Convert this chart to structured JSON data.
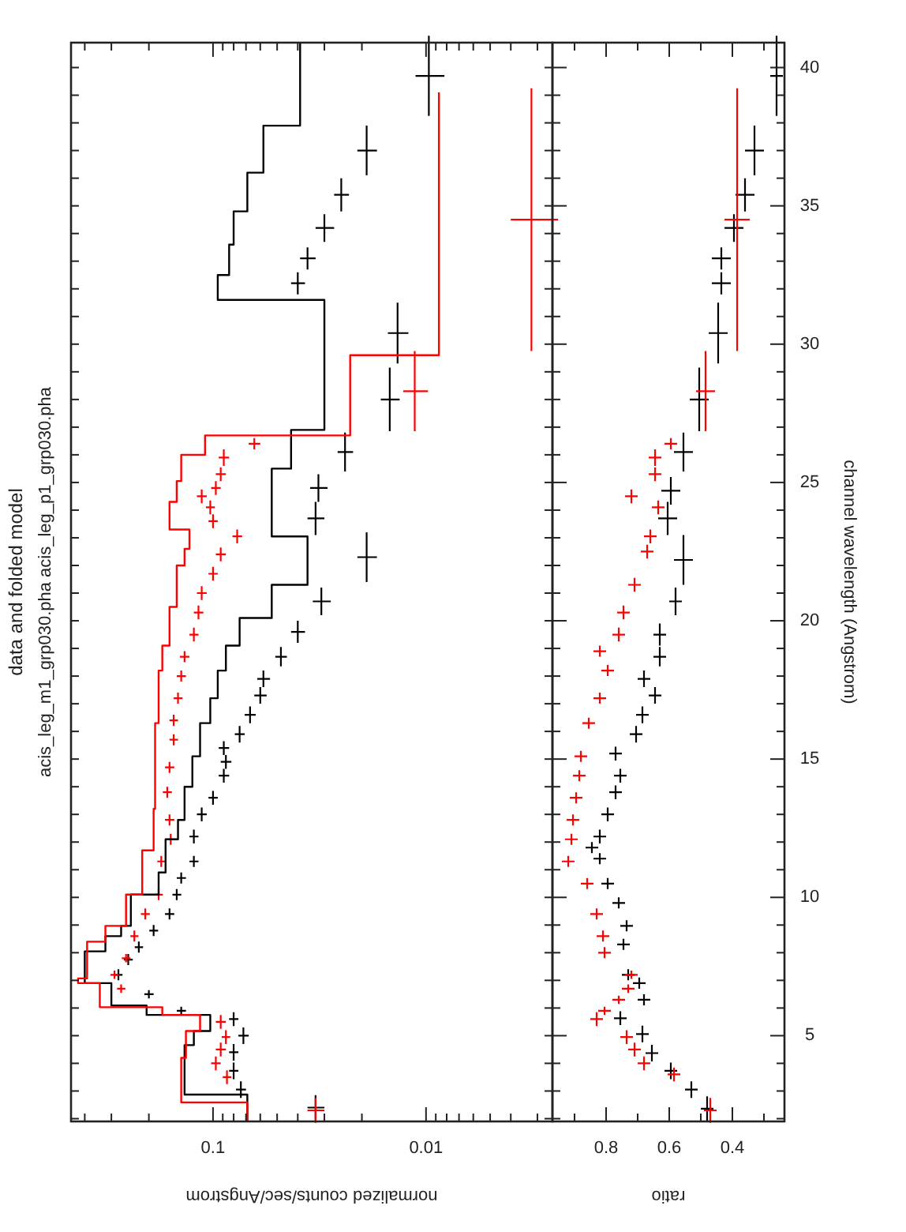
{
  "chart_data": [
    {
      "type": "scatter",
      "title": "data and folded model",
      "subtitle": "acis_leg_m1_grp030.pha acis_leg_p1_grp030.pha",
      "xlabel": "normalized counts/sec/Angstrom",
      "log": "x",
      "tick_labels": "x",
      "xlim": [
        0.464,
        0.00255
      ],
      "ylim": [
        1.9,
        40.9
      ],
      "xticks": [
        {
          "value": 0.003,
          "label": null
        },
        {
          "value": 0.004,
          "label": null
        },
        {
          "value": 0.005,
          "label": null
        },
        {
          "value": 0.006,
          "label": null
        },
        {
          "value": 0.007,
          "label": null
        },
        {
          "value": 0.008,
          "label": null
        },
        {
          "value": 0.009,
          "label": null
        },
        0.01,
        {
          "value": 0.02,
          "label": null
        },
        {
          "value": 0.03,
          "label": null
        },
        {
          "value": 0.04,
          "label": null
        },
        {
          "value": 0.05,
          "label": null
        },
        {
          "value": 0.06,
          "label": null
        },
        {
          "value": 0.07,
          "label": null
        },
        {
          "value": 0.08,
          "label": null
        },
        {
          "value": 0.09,
          "label": null
        },
        0.1,
        {
          "value": 0.2,
          "label": null
        },
        {
          "value": 0.3,
          "label": null
        },
        {
          "value": 0.4,
          "label": null
        }
      ],
      "yticks": [
        {
          "value": 2,
          "label": null
        },
        {
          "value": 3,
          "label": null
        },
        {
          "value": 4,
          "label": null
        },
        {
          "value": 5,
          "label": null
        },
        {
          "value": 6,
          "label": null
        },
        {
          "value": 7,
          "label": null
        },
        {
          "value": 8,
          "label": null
        },
        {
          "value": 9,
          "label": null
        },
        {
          "value": 10,
          "label": null
        },
        {
          "value": 11,
          "label": null
        },
        {
          "value": 12,
          "label": null
        },
        {
          "value": 13,
          "label": null
        },
        {
          "value": 14,
          "label": null
        },
        {
          "value": 15,
          "label": null
        },
        {
          "value": 16,
          "label": null
        },
        {
          "value": 17,
          "label": null
        },
        {
          "value": 18,
          "label": null
        },
        {
          "value": 19,
          "label": null
        },
        {
          "value": 20,
          "label": null
        },
        {
          "value": 21,
          "label": null
        },
        {
          "value": 22,
          "label": null
        },
        {
          "value": 23,
          "label": null
        },
        {
          "value": 24,
          "label": null
        },
        {
          "value": 25,
          "label": null
        },
        {
          "value": 26,
          "label": null
        },
        {
          "value": 27,
          "label": null
        },
        {
          "value": 28,
          "label": null
        },
        {
          "value": 29,
          "label": null
        },
        {
          "value": 30,
          "label": null
        },
        {
          "value": 31,
          "label": null
        },
        {
          "value": 32,
          "label": null
        },
        {
          "value": 33,
          "label": null
        },
        {
          "value": 34,
          "label": null
        },
        {
          "value": 35,
          "label": null
        },
        {
          "value": 36,
          "label": null
        },
        {
          "value": 37,
          "label": null
        },
        {
          "value": 38,
          "label": null
        },
        {
          "value": 39,
          "label": null
        },
        {
          "value": 40,
          "label": null
        }
      ],
      "series": [
        {
          "type": "scatter",
          "marker": "cross",
          "color": "#000000",
          "values": [
            2.4,
            3.05,
            3.73,
            4.4,
            5.0,
            5.6,
            5.9,
            6.5,
            7.2,
            7.75,
            8.2,
            8.8,
            9.4,
            10.1,
            10.7,
            11.3,
            12.2,
            13.0,
            13.6,
            14.4,
            14.9,
            15.4,
            15.9,
            16.6,
            17.3,
            17.9,
            18.7,
            19.6,
            20.7,
            22.3,
            23.7,
            24.8,
            26.1,
            28.0,
            30.4,
            32.2,
            33.1,
            34.2,
            35.4,
            37.0,
            39.7
          ],
          "x": [
            0.033,
            0.074,
            0.08,
            0.08,
            0.072,
            0.08,
            0.141,
            0.2,
            0.278,
            0.25,
            0.223,
            0.19,
            0.16,
            0.148,
            0.141,
            0.123,
            0.123,
            0.113,
            0.1,
            0.089,
            0.087,
            0.089,
            0.075,
            0.067,
            0.06,
            0.058,
            0.048,
            0.04,
            0.031,
            0.019,
            0.033,
            0.032,
            0.024,
            0.0148,
            0.0136,
            0.04,
            0.036,
            0.03,
            0.025,
            0.019,
            0.0097
          ],
          "errors": [
            0.45,
            0.3,
            0.3,
            0.3,
            0.3,
            0.25,
            0.15,
            0.15,
            0.2,
            0.2,
            0.2,
            0.2,
            0.2,
            0.2,
            0.2,
            0.2,
            0.25,
            0.25,
            0.25,
            0.25,
            0.25,
            0.25,
            0.3,
            0.3,
            0.3,
            0.3,
            0.35,
            0.4,
            0.5,
            0.9,
            0.6,
            0.5,
            0.7,
            1.15,
            1.1,
            0.4,
            0.4,
            0.5,
            0.6,
            0.9,
            1.45
          ],
          "xerrors": [
            0.003,
            0.004,
            0.004,
            0.004,
            0.004,
            0.004,
            0.007,
            0.01,
            0.012,
            0.012,
            0.01,
            0.009,
            0.008,
            0.007,
            0.007,
            0.006,
            0.006,
            0.006,
            0.005,
            0.005,
            0.005,
            0.005,
            0.004,
            0.004,
            0.004,
            0.004,
            0.003,
            0.003,
            0.003,
            0.002,
            0.003,
            0.003,
            0.002,
            0.0015,
            0.0015,
            0.003,
            0.003,
            0.003,
            0.002,
            0.002,
            0.0015
          ]
        },
        {
          "type": "scatter",
          "marker": "cross",
          "color": "#ff0000",
          "values": [
            2.3,
            3.5,
            4.0,
            4.5,
            4.95,
            5.5,
            6.7,
            7.2,
            7.8,
            8.6,
            9.4,
            10.1,
            11.3,
            12.1,
            12.8,
            13.8,
            14.7,
            15.7,
            16.4,
            17.2,
            18.0,
            18.7,
            19.5,
            20.3,
            21.0,
            21.7,
            22.4,
            23.05,
            23.6,
            24.1,
            24.5,
            24.8,
            25.3,
            25.9,
            26.4,
            28.3,
            34.5
          ],
          "x": [
            0.033,
            0.086,
            0.097,
            0.092,
            0.087,
            0.092,
            0.27,
            0.29,
            0.256,
            0.234,
            0.208,
            0.18,
            0.175,
            0.158,
            0.16,
            0.164,
            0.16,
            0.153,
            0.153,
            0.146,
            0.141,
            0.136,
            0.123,
            0.117,
            0.113,
            0.1,
            0.092,
            0.077,
            0.1,
            0.103,
            0.113,
            0.097,
            0.092,
            0.089,
            0.064,
            0.0113,
            0.0032
          ],
          "errors": [
            0.45,
            0.25,
            0.25,
            0.25,
            0.25,
            0.25,
            0.15,
            0.15,
            0.15,
            0.2,
            0.2,
            0.2,
            0.2,
            0.2,
            0.2,
            0.2,
            0.2,
            0.2,
            0.2,
            0.2,
            0.2,
            0.2,
            0.25,
            0.25,
            0.25,
            0.25,
            0.25,
            0.25,
            0.25,
            0.25,
            0.25,
            0.25,
            0.25,
            0.3,
            0.2,
            1.45,
            4.75
          ],
          "xerrors": [
            0.003,
            0.004,
            0.005,
            0.005,
            0.004,
            0.005,
            0.012,
            0.013,
            0.012,
            0.01,
            0.01,
            0.008,
            0.006,
            0.006,
            0.008,
            0.008,
            0.008,
            0.007,
            0.007,
            0.007,
            0.007,
            0.007,
            0.006,
            0.006,
            0.006,
            0.005,
            0.005,
            0.004,
            0.005,
            0.005,
            0.006,
            0.005,
            0.005,
            0.005,
            0.004,
            0.0015,
            0.0008
          ]
        },
        {
          "type": "step",
          "color": "#000000",
          "values": [
            1.9,
            2.87,
            4.66,
            5.17,
            5.75,
            6.09,
            6.9,
            8.05,
            8.6,
            8.97,
            10.1,
            10.9,
            12.1,
            12.8,
            14.0,
            15.1,
            16.3,
            17.2,
            18.2,
            19.1,
            20.1,
            21.3,
            23.05,
            25.5,
            26.9,
            31.6,
            32.5,
            33.6,
            34.8,
            36.2,
            37.9,
            40.9
          ],
          "x": [
            0.069,
            0.136,
            0.123,
            0.103,
            0.205,
            0.3,
            0.4,
            0.32,
            0.27,
            0.243,
            0.18,
            0.167,
            0.146,
            0.136,
            0.125,
            0.115,
            0.103,
            0.095,
            0.087,
            0.075,
            0.053,
            0.036,
            0.053,
            0.043,
            0.03,
            0.095,
            0.084,
            0.08,
            0.069,
            0.058,
            0.039,
            0.039
          ]
        },
        {
          "type": "step",
          "color": "#ff0000",
          "values": [
            1.9,
            2.59,
            4.2,
            5.17,
            5.75,
            6.03,
            6.9,
            7.07,
            8.4,
            8.97,
            10.1,
            11.7,
            13.2,
            14.4,
            16.3,
            18.2,
            19.1,
            20.5,
            22.0,
            22.6,
            23.3,
            24.3,
            25.05,
            26.0,
            26.7,
            29.6,
            39.1
          ],
          "x": [
            0.069,
            0.141,
            0.134,
            0.115,
            0.173,
            0.34,
            0.43,
            0.39,
            0.32,
            0.256,
            0.215,
            0.19,
            0.187,
            0.187,
            0.18,
            0.173,
            0.16,
            0.148,
            0.136,
            0.129,
            0.16,
            0.148,
            0.141,
            0.109,
            0.0227,
            0.0087,
            0.0087
          ]
        }
      ]
    },
    {
      "type": "scatter",
      "xlabel": "ratio",
      "ylabel": "channel wavelength (Angstrom)",
      "xlim": [
        0.97,
        0.235
      ],
      "ylim": [
        1.9,
        40.9
      ],
      "xticks": [
        {
          "value": 0.3,
          "label": null
        },
        0.4,
        {
          "value": 0.5,
          "label": null
        },
        0.6,
        {
          "value": 0.7,
          "label": null
        },
        0.8,
        {
          "value": 0.9,
          "label": null
        }
      ],
      "yticks": [
        {
          "value": 2,
          "label": null
        },
        {
          "value": 3,
          "label": null
        },
        {
          "value": 4,
          "label": null
        },
        5,
        {
          "value": 6,
          "label": null
        },
        {
          "value": 7,
          "label": null
        },
        {
          "value": 8,
          "label": null
        },
        {
          "value": 9,
          "label": null
        },
        10,
        {
          "value": 11,
          "label": null
        },
        {
          "value": 12,
          "label": null
        },
        {
          "value": 13,
          "label": null
        },
        {
          "value": 14,
          "label": null
        },
        15,
        {
          "value": 16,
          "label": null
        },
        {
          "value": 17,
          "label": null
        },
        {
          "value": 18,
          "label": null
        },
        {
          "value": 19,
          "label": null
        },
        20,
        {
          "value": 21,
          "label": null
        },
        {
          "value": 22,
          "label": null
        },
        {
          "value": 23,
          "label": null
        },
        {
          "value": 24,
          "label": null
        },
        25,
        {
          "value": 26,
          "label": null
        },
        {
          "value": 27,
          "label": null
        },
        {
          "value": 28,
          "label": null
        },
        {
          "value": 29,
          "label": null
        },
        30,
        {
          "value": 31,
          "label": null
        },
        {
          "value": 32,
          "label": null
        },
        {
          "value": 33,
          "label": null
        },
        {
          "value": 34,
          "label": null
        },
        35,
        {
          "value": 36,
          "label": null
        },
        {
          "value": 37,
          "label": null
        },
        {
          "value": 38,
          "label": null
        },
        {
          "value": 39,
          "label": null
        },
        40
      ],
      "series": [
        {
          "type": "scatter",
          "marker": "cross",
          "color": "#000000",
          "values": [
            2.36,
            3.05,
            3.73,
            4.37,
            5.06,
            5.63,
            6.3,
            6.9,
            7.2,
            8.3,
            8.97,
            9.8,
            10.5,
            11.4,
            11.8,
            12.2,
            13.0,
            13.8,
            14.4,
            15.2,
            15.9,
            16.6,
            17.3,
            17.9,
            18.7,
            19.5,
            20.7,
            22.2,
            23.7,
            24.7,
            26.1,
            28.0,
            30.4,
            32.2,
            33.1,
            34.2,
            35.4,
            37.0,
            39.7
          ],
          "x": [
            0.48,
            0.53,
            0.595,
            0.655,
            0.685,
            0.755,
            0.68,
            0.695,
            0.73,
            0.745,
            0.735,
            0.76,
            0.795,
            0.82,
            0.845,
            0.82,
            0.795,
            0.77,
            0.755,
            0.77,
            0.705,
            0.685,
            0.645,
            0.68,
            0.63,
            0.63,
            0.58,
            0.555,
            0.605,
            0.595,
            0.555,
            0.505,
            0.445,
            0.435,
            0.435,
            0.395,
            0.36,
            0.33,
            0.26
          ],
          "errors": [
            0.45,
            0.3,
            0.3,
            0.3,
            0.3,
            0.25,
            0.2,
            0.2,
            0.2,
            0.2,
            0.2,
            0.2,
            0.2,
            0.2,
            0.2,
            0.25,
            0.25,
            0.25,
            0.25,
            0.25,
            0.3,
            0.3,
            0.3,
            0.3,
            0.35,
            0.4,
            0.5,
            0.9,
            0.6,
            0.5,
            0.7,
            1.15,
            1.1,
            0.4,
            0.4,
            0.5,
            0.6,
            0.9,
            1.45
          ],
          "xerrors": [
            0.02,
            0.02,
            0.02,
            0.02,
            0.02,
            0.02,
            0.02,
            0.02,
            0.02,
            0.02,
            0.02,
            0.02,
            0.02,
            0.02,
            0.02,
            0.02,
            0.02,
            0.02,
            0.02,
            0.02,
            0.02,
            0.02,
            0.02,
            0.02,
            0.02,
            0.02,
            0.02,
            0.03,
            0.03,
            0.03,
            0.03,
            0.03,
            0.03,
            0.03,
            0.03,
            0.03,
            0.03,
            0.03,
            0.02
          ]
        },
        {
          "type": "scatter",
          "marker": "cross",
          "color": "#ff0000",
          "values": [
            2.3,
            3.6,
            4.0,
            4.5,
            4.95,
            5.6,
            5.9,
            6.3,
            6.7,
            7.2,
            8.0,
            8.6,
            9.4,
            10.5,
            11.3,
            12.1,
            12.8,
            13.6,
            14.4,
            15.1,
            16.3,
            17.2,
            18.2,
            18.9,
            19.5,
            20.3,
            21.3,
            22.5,
            23.05,
            24.1,
            24.5,
            25.3,
            25.9,
            26.4,
            28.3,
            34.5
          ],
          "x": [
            0.47,
            0.585,
            0.68,
            0.71,
            0.735,
            0.83,
            0.805,
            0.76,
            0.73,
            0.72,
            0.805,
            0.81,
            0.83,
            0.86,
            0.92,
            0.91,
            0.905,
            0.895,
            0.885,
            0.88,
            0.855,
            0.82,
            0.795,
            0.82,
            0.76,
            0.745,
            0.71,
            0.67,
            0.66,
            0.635,
            0.72,
            0.645,
            0.645,
            0.595,
            0.485,
            0.385
          ],
          "errors": [
            0.45,
            0.25,
            0.25,
            0.25,
            0.25,
            0.25,
            0.15,
            0.15,
            0.15,
            0.15,
            0.2,
            0.2,
            0.2,
            0.2,
            0.2,
            0.2,
            0.2,
            0.2,
            0.2,
            0.2,
            0.2,
            0.2,
            0.2,
            0.2,
            0.25,
            0.25,
            0.25,
            0.25,
            0.25,
            0.25,
            0.25,
            0.25,
            0.3,
            0.2,
            1.45,
            4.75
          ],
          "xerrors": [
            0.02,
            0.02,
            0.02,
            0.02,
            0.02,
            0.02,
            0.02,
            0.02,
            0.02,
            0.02,
            0.02,
            0.02,
            0.02,
            0.02,
            0.02,
            0.02,
            0.02,
            0.02,
            0.02,
            0.02,
            0.02,
            0.02,
            0.02,
            0.02,
            0.02,
            0.02,
            0.02,
            0.02,
            0.02,
            0.02,
            0.02,
            0.02,
            0.02,
            0.02,
            0.03,
            0.04
          ]
        }
      ]
    }
  ]
}
